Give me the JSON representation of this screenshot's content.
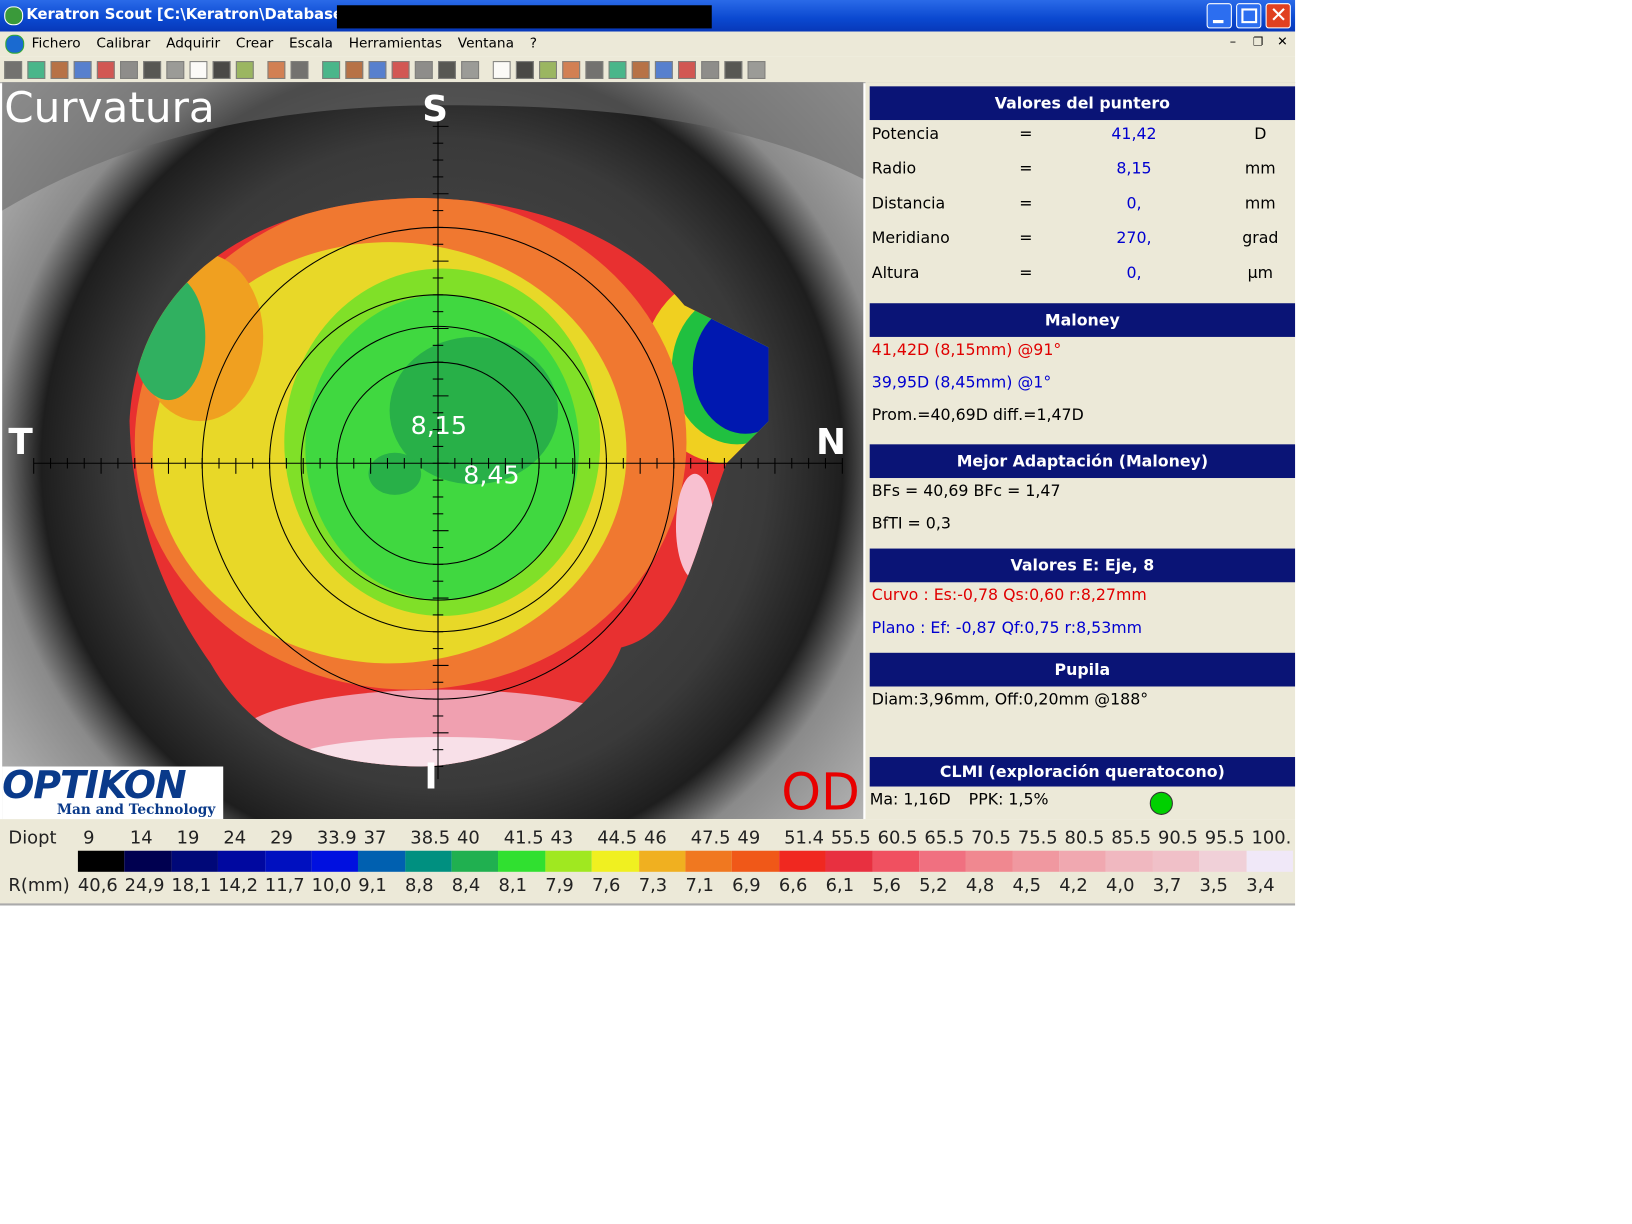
{
  "window": {
    "title": "Keratron Scout [C:\\Keratron\\Database] -"
  },
  "menu": [
    "Fichero",
    "Calibrar",
    "Adquirir",
    "Crear",
    "Escala",
    "Herramientas",
    "Ventana",
    "?"
  ],
  "map": {
    "title": "Curvatura",
    "superior": "S",
    "temporal": "T",
    "nasal": "N",
    "inferior": "I",
    "readouts": [
      "8,15",
      "8,45"
    ],
    "eye": "OD",
    "logo": {
      "name": "OPTIKON",
      "tagline": "Man and Technology"
    }
  },
  "panels": [
    {
      "title": "Valores del puntero",
      "rows": [
        [
          "Potencia",
          "=",
          "41,42",
          "D"
        ],
        [
          "Radio",
          "=",
          "8,15",
          "mm"
        ],
        [
          "Distancia",
          "=",
          "0,",
          "mm"
        ],
        [
          "Meridiano",
          "=",
          "270,",
          "grad"
        ],
        [
          "Altura",
          "=",
          "0,",
          "µm"
        ]
      ]
    },
    {
      "title": "Maloney",
      "lines": [
        {
          "text": "41,42D (8,15mm) @91°",
          "color": "#e00000"
        },
        {
          "text": "39,95D (8,45mm) @1°",
          "color": "#0000d0"
        },
        {
          "text": "Prom.=40,69D  diff.=1,47D"
        }
      ]
    },
    {
      "title": "Mejor Adaptación (Maloney)",
      "lines": [
        {
          "text": "BFs = 40,69 BFc = 1,47"
        },
        {
          "text": "BfTI = 0,3"
        }
      ]
    },
    {
      "title": "Valores E: Eje, 8",
      "lines": [
        {
          "text": "Curvo :  Es:-0,78 Qs:0,60 r:8,27mm",
          "color": "#e00000"
        },
        {
          "text": "Plano :  Ef: -0,87 Qf:0,75 r:8,53mm",
          "color": "#0000d0"
        }
      ]
    },
    {
      "title": "Pupila",
      "lines": [
        {
          "text": "Diam:3,96mm, Off:0,20mm @188°"
        }
      ]
    },
    {
      "title": "CLMI (exploración queratocono)",
      "items": [
        "Ma: 1,16D",
        "PPK: 1,5%"
      ],
      "indicator": "#00d000"
    }
  ],
  "scale": {
    "diopt_label": "Diopt",
    "r_label": "R(mm)",
    "diopt": [
      "9",
      "14",
      "19",
      "24",
      "29",
      "33.9",
      "37",
      "38.5",
      "40",
      "41.5",
      "43",
      "44.5",
      "46",
      "47.5",
      "49",
      "51.4",
      "55.5",
      "60.5",
      "65.5",
      "70.5",
      "75.5",
      "80.5",
      "85.5",
      "90.5",
      "95.5",
      "100."
    ],
    "r": [
      "40,6",
      "24,9",
      "18,1",
      "14,2",
      "11,7",
      "10,0",
      "9,1",
      "8,8",
      "8,4",
      "8,1",
      "7,9",
      "7,6",
      "7,3",
      "7,1",
      "6,9",
      "6,6",
      "6,1",
      "5,6",
      "5,2",
      "4,8",
      "4,5",
      "4,2",
      "4,0",
      "3,7",
      "3,5",
      "3,4"
    ],
    "colors": [
      "#000000",
      "#000050",
      "#000878",
      "#0008a0",
      "#0010c0",
      "#0010e0",
      "#0060b0",
      "#009080",
      "#20b050",
      "#30e030",
      "#a0e820",
      "#f0f020",
      "#f0b020",
      "#f07820",
      "#f05818",
      "#f02820",
      "#e83040",
      "#f05060",
      "#f07080",
      "#f08890",
      "#f098a0",
      "#f0a8b0",
      "#f0b8c0",
      "#f0c0c8",
      "#f0d0d8",
      "#f0e8f8"
    ]
  }
}
